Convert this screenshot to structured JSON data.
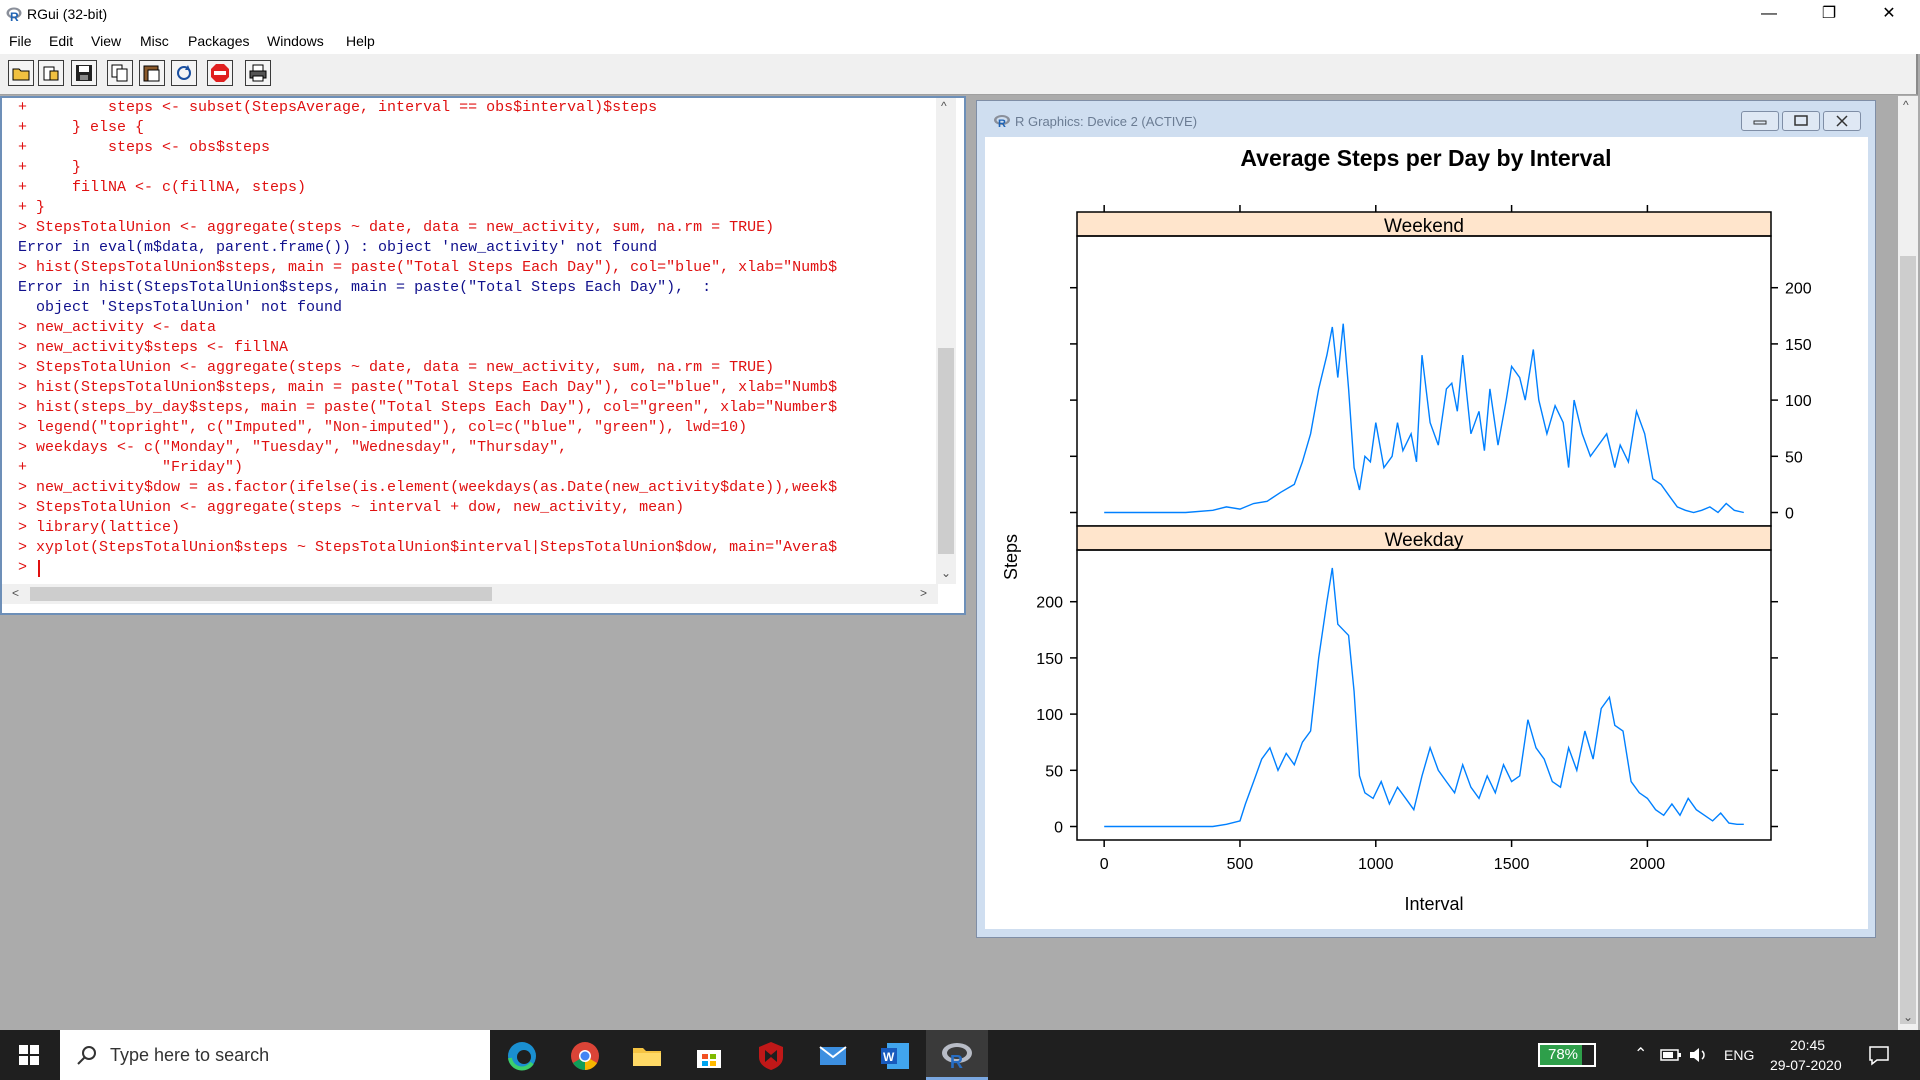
{
  "window": {
    "title": "RGui (32-bit)"
  },
  "menu": [
    "File",
    "Edit",
    "View",
    "Misc",
    "Packages",
    "Windows",
    "Help"
  ],
  "console": {
    "lines": [
      {
        "t": "+         steps <- subset(StepsAverage, interval == obs$interval)$steps",
        "c": "red"
      },
      {
        "t": "+     } else {",
        "c": "red"
      },
      {
        "t": "+         steps <- obs$steps",
        "c": "red"
      },
      {
        "t": "+     }",
        "c": "red"
      },
      {
        "t": "+     fillNA <- c(fillNA, steps)",
        "c": "red"
      },
      {
        "t": "+ }",
        "c": "red"
      },
      {
        "t": "> StepsTotalUnion <- aggregate(steps ~ date, data = new_activity, sum, na.rm = TRUE)",
        "c": "red"
      },
      {
        "t": "Error in eval(m$data, parent.frame()) : object 'new_activity' not found",
        "c": "blue"
      },
      {
        "t": "> hist(StepsTotalUnion$steps, main = paste(\"Total Steps Each Day\"), col=\"blue\", xlab=\"Numb$",
        "c": "red"
      },
      {
        "t": "Error in hist(StepsTotalUnion$steps, main = paste(\"Total Steps Each Day\"),  :",
        "c": "blue"
      },
      {
        "t": "  object 'StepsTotalUnion' not found",
        "c": "blue"
      },
      {
        "t": "> new_activity <- data",
        "c": "red"
      },
      {
        "t": "> new_activity$steps <- fillNA",
        "c": "red"
      },
      {
        "t": "> StepsTotalUnion <- aggregate(steps ~ date, data = new_activity, sum, na.rm = TRUE)",
        "c": "red"
      },
      {
        "t": "> hist(StepsTotalUnion$steps, main = paste(\"Total Steps Each Day\"), col=\"blue\", xlab=\"Numb$",
        "c": "red"
      },
      {
        "t": "> hist(steps_by_day$steps, main = paste(\"Total Steps Each Day\"), col=\"green\", xlab=\"Number$",
        "c": "red"
      },
      {
        "t": "> legend(\"topright\", c(\"Imputed\", \"Non-imputed\"), col=c(\"blue\", \"green\"), lwd=10)",
        "c": "red"
      },
      {
        "t": "> weekdays <- c(\"Monday\", \"Tuesday\", \"Wednesday\", \"Thursday\",",
        "c": "red"
      },
      {
        "t": "+               \"Friday\")",
        "c": "red"
      },
      {
        "t": "> new_activity$dow = as.factor(ifelse(is.element(weekdays(as.Date(new_activity$date)),week$",
        "c": "red"
      },
      {
        "t": "> StepsTotalUnion <- aggregate(steps ~ interval + dow, new_activity, mean)",
        "c": "red"
      },
      {
        "t": "> library(lattice)",
        "c": "red"
      },
      {
        "t": "> xyplot(StepsTotalUnion$steps ~ StepsTotalUnion$interval|StepsTotalUnion$dow, main=\"Avera$",
        "c": "red"
      },
      {
        "t": "> ",
        "c": "red"
      }
    ]
  },
  "graphics_window": {
    "title": "R Graphics: Device 2 (ACTIVE)"
  },
  "chart_data": {
    "type": "line",
    "title": "Average Steps per Day by Interval",
    "xlabel": "Interval",
    "ylabel": "Steps",
    "xlim": [
      -100,
      2455
    ],
    "x_ticks": [
      0,
      500,
      1000,
      1500,
      2000
    ],
    "y_ticks": [
      0,
      50,
      100,
      150,
      200
    ],
    "line_color": "#0080ff",
    "strip_color": "#ffe5cc",
    "panels": [
      {
        "name": "Weekend",
        "ylim": [
          -12,
          246
        ],
        "points": [
          [
            0,
            0
          ],
          [
            100,
            0
          ],
          [
            200,
            0
          ],
          [
            300,
            0
          ],
          [
            400,
            2
          ],
          [
            450,
            5
          ],
          [
            500,
            3
          ],
          [
            550,
            8
          ],
          [
            600,
            10
          ],
          [
            650,
            18
          ],
          [
            700,
            25
          ],
          [
            730,
            45
          ],
          [
            760,
            70
          ],
          [
            790,
            110
          ],
          [
            820,
            140
          ],
          [
            840,
            165
          ],
          [
            860,
            120
          ],
          [
            880,
            168
          ],
          [
            900,
            110
          ],
          [
            920,
            40
          ],
          [
            940,
            20
          ],
          [
            960,
            50
          ],
          [
            980,
            45
          ],
          [
            1000,
            80
          ],
          [
            1030,
            40
          ],
          [
            1060,
            50
          ],
          [
            1080,
            80
          ],
          [
            1100,
            55
          ],
          [
            1130,
            70
          ],
          [
            1150,
            45
          ],
          [
            1170,
            140
          ],
          [
            1200,
            80
          ],
          [
            1230,
            60
          ],
          [
            1260,
            110
          ],
          [
            1280,
            115
          ],
          [
            1300,
            90
          ],
          [
            1320,
            140
          ],
          [
            1350,
            70
          ],
          [
            1380,
            90
          ],
          [
            1400,
            55
          ],
          [
            1420,
            110
          ],
          [
            1450,
            60
          ],
          [
            1480,
            100
          ],
          [
            1500,
            130
          ],
          [
            1530,
            120
          ],
          [
            1550,
            100
          ],
          [
            1580,
            145
          ],
          [
            1600,
            100
          ],
          [
            1630,
            70
          ],
          [
            1660,
            95
          ],
          [
            1690,
            80
          ],
          [
            1710,
            40
          ],
          [
            1730,
            100
          ],
          [
            1760,
            70
          ],
          [
            1790,
            50
          ],
          [
            1820,
            60
          ],
          [
            1850,
            70
          ],
          [
            1880,
            40
          ],
          [
            1900,
            60
          ],
          [
            1930,
            45
          ],
          [
            1960,
            90
          ],
          [
            1990,
            70
          ],
          [
            2020,
            30
          ],
          [
            2050,
            25
          ],
          [
            2080,
            15
          ],
          [
            2110,
            5
          ],
          [
            2140,
            2
          ],
          [
            2170,
            0
          ],
          [
            2200,
            2
          ],
          [
            2230,
            5
          ],
          [
            2260,
            0
          ],
          [
            2290,
            8
          ],
          [
            2320,
            2
          ],
          [
            2355,
            0
          ]
        ]
      },
      {
        "name": "Weekday",
        "ylim": [
          -12,
          246
        ],
        "points": [
          [
            0,
            0
          ],
          [
            100,
            0
          ],
          [
            200,
            0
          ],
          [
            300,
            0
          ],
          [
            400,
            0
          ],
          [
            450,
            2
          ],
          [
            500,
            5
          ],
          [
            520,
            20
          ],
          [
            550,
            40
          ],
          [
            580,
            60
          ],
          [
            610,
            70
          ],
          [
            640,
            50
          ],
          [
            670,
            65
          ],
          [
            700,
            55
          ],
          [
            730,
            75
          ],
          [
            760,
            85
          ],
          [
            790,
            150
          ],
          [
            820,
            200
          ],
          [
            840,
            230
          ],
          [
            860,
            180
          ],
          [
            880,
            175
          ],
          [
            900,
            170
          ],
          [
            920,
            120
          ],
          [
            940,
            45
          ],
          [
            960,
            30
          ],
          [
            990,
            25
          ],
          [
            1020,
            40
          ],
          [
            1050,
            20
          ],
          [
            1080,
            35
          ],
          [
            1110,
            25
          ],
          [
            1140,
            15
          ],
          [
            1170,
            45
          ],
          [
            1200,
            70
          ],
          [
            1230,
            50
          ],
          [
            1260,
            40
          ],
          [
            1290,
            30
          ],
          [
            1320,
            55
          ],
          [
            1350,
            35
          ],
          [
            1380,
            25
          ],
          [
            1410,
            45
          ],
          [
            1440,
            30
          ],
          [
            1470,
            55
          ],
          [
            1500,
            40
          ],
          [
            1530,
            45
          ],
          [
            1560,
            95
          ],
          [
            1590,
            70
          ],
          [
            1620,
            60
          ],
          [
            1650,
            40
          ],
          [
            1680,
            35
          ],
          [
            1710,
            70
          ],
          [
            1740,
            50
          ],
          [
            1770,
            85
          ],
          [
            1800,
            60
          ],
          [
            1830,
            105
          ],
          [
            1860,
            115
          ],
          [
            1880,
            90
          ],
          [
            1910,
            85
          ],
          [
            1940,
            40
          ],
          [
            1970,
            30
          ],
          [
            2000,
            25
          ],
          [
            2030,
            15
          ],
          [
            2060,
            10
          ],
          [
            2090,
            20
          ],
          [
            2120,
            10
          ],
          [
            2150,
            25
          ],
          [
            2180,
            15
          ],
          [
            2210,
            10
          ],
          [
            2240,
            5
          ],
          [
            2270,
            12
          ],
          [
            2300,
            3
          ],
          [
            2330,
            2
          ],
          [
            2355,
            2
          ]
        ]
      }
    ]
  },
  "taskbar": {
    "search_placeholder": "Type here to search",
    "battery": "78%",
    "lang": "ENG",
    "time": "20:45",
    "date": "29-07-2020"
  }
}
